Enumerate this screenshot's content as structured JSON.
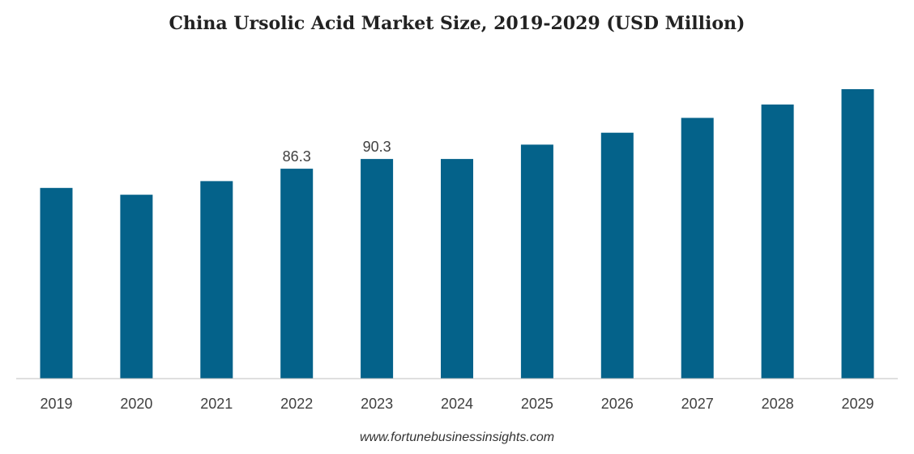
{
  "chart_data": {
    "type": "bar",
    "title": "China Ursolic Acid Market Size, 2019-2029 (USD Million)",
    "xlabel": "",
    "ylabel": "",
    "categories": [
      "2019",
      "2020",
      "2021",
      "2022",
      "2023",
      "2024",
      "2025",
      "2026",
      "2027",
      "2028",
      "2029"
    ],
    "values": [
      78.4,
      75.6,
      81.2,
      86.3,
      90.3,
      90.3,
      96.2,
      101.1,
      107.2,
      112.7,
      119.0
    ],
    "data_labels": [
      "",
      "",
      "",
      "86.3",
      "90.3",
      "",
      "",
      "",
      "",
      "",
      ""
    ],
    "ylim": [
      0,
      140
    ],
    "grid": false,
    "legend": "none",
    "bar_color": "#04628A",
    "axis_color": "#BFBFBF"
  },
  "source": "www.fortunebusinessinsights.com"
}
